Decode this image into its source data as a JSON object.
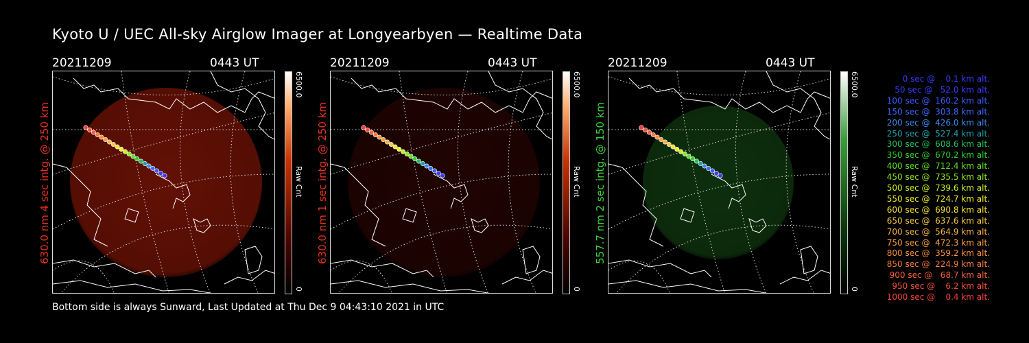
{
  "title": "Kyoto U / UEC All-sky Airglow Imager at Longyearbyen — Realtime Data",
  "footer": "Bottom side is always Sunward, Last Updated at Thu Dec  9 04:43:10 2021 in UTC",
  "panels": [
    {
      "date": "20211209",
      "time": "0443 UT",
      "side_label": "630.0 nm 4 sec intg. @ 250 km",
      "side_label_color": "#e8321e",
      "colorbar_max": "6500.0",
      "colorbar_min": "0",
      "colorbar_title": "Raw Cnt",
      "glow_color": "#b41e08",
      "glow_opacity": 0.55
    },
    {
      "date": "20211209",
      "time": "0443 UT",
      "side_label": "630.0 nm 1 sec intg. @ 250 km",
      "side_label_color": "#e8321e",
      "colorbar_max": "6500.0",
      "colorbar_min": "0",
      "colorbar_title": "Raw Cnt",
      "glow_color": "#5a0a04",
      "glow_opacity": 0.35
    },
    {
      "date": "20211209",
      "time": "0443 UT",
      "side_label": "557.7 nm 2 sec intg. @ 150 km",
      "side_label_color": "#3cd23c",
      "colorbar_max": "6500.0",
      "colorbar_min": "0",
      "colorbar_title": "Raw Cnt",
      "glow_color": "#1e6a1e",
      "glow_opacity": 0.45
    }
  ],
  "legend": [
    {
      "text": "0 sec @    0.1 km alt.",
      "color": "#3a3aff"
    },
    {
      "text": "50 sec @   52.0 km alt.",
      "color": "#3a3aff"
    },
    {
      "text": "100 sec @  160.2 km alt.",
      "color": "#3a5aff"
    },
    {
      "text": "150 sec @  303.8 km alt.",
      "color": "#3a6aff"
    },
    {
      "text": "200 sec @  426.0 km alt.",
      "color": "#3a8ae8"
    },
    {
      "text": "250 sec @  527.4 km alt.",
      "color": "#20a0b0"
    },
    {
      "text": "300 sec @  608.6 km alt.",
      "color": "#20c060"
    },
    {
      "text": "350 sec @  670.2 km alt.",
      "color": "#30d030"
    },
    {
      "text": "400 sec @  712.4 km alt.",
      "color": "#60e020"
    },
    {
      "text": "450 sec @  735.5 km alt.",
      "color": "#90e820"
    },
    {
      "text": "500 sec @  739.6 km alt.",
      "color": "#c8f020"
    },
    {
      "text": "550 sec @  724.7 km alt.",
      "color": "#f0f020"
    },
    {
      "text": "600 sec @  690.8 km alt.",
      "color": "#f8e030"
    },
    {
      "text": "650 sec @  637.6 km alt.",
      "color": "#f8c840"
    },
    {
      "text": "700 sec @  564.9 km alt.",
      "color": "#f8b040"
    },
    {
      "text": "750 sec @  472.3 km alt.",
      "color": "#f8a040"
    },
    {
      "text": "800 sec @  359.2 km alt.",
      "color": "#f89040"
    },
    {
      "text": "850 sec @  224.9 km alt.",
      "color": "#f87a3a"
    },
    {
      "text": "900 sec @   68.7 km alt.",
      "color": "#f8603a"
    },
    {
      "text": "950 sec @    6.2 km alt.",
      "color": "#f8503a"
    },
    {
      "text": "1000 sec @    0.4 km alt.",
      "color": "#f8403a"
    }
  ]
}
